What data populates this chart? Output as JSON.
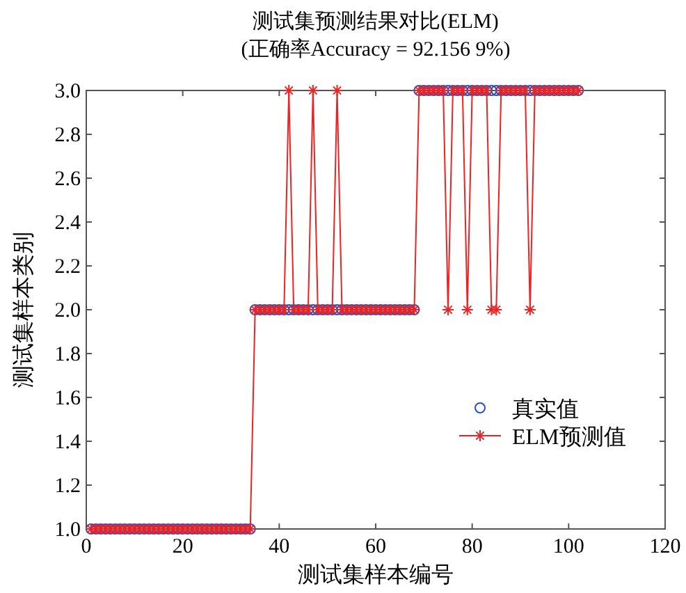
{
  "chart_data": {
    "type": "line",
    "title": "测试集预测结果对比(ELM)",
    "subtitle": "(正确率Accuracy = 92.156 9%)",
    "xlabel": "测试集样本编号",
    "ylabel": "测试集样本类别",
    "x": [
      1,
      2,
      3,
      4,
      5,
      6,
      7,
      8,
      9,
      10,
      11,
      12,
      13,
      14,
      15,
      16,
      17,
      18,
      19,
      20,
      21,
      22,
      23,
      24,
      25,
      26,
      27,
      28,
      29,
      30,
      31,
      32,
      33,
      34,
      35,
      36,
      37,
      38,
      39,
      40,
      41,
      42,
      43,
      44,
      45,
      46,
      47,
      48,
      49,
      50,
      51,
      52,
      53,
      54,
      55,
      56,
      57,
      58,
      59,
      60,
      61,
      62,
      63,
      64,
      65,
      66,
      67,
      68,
      69,
      70,
      71,
      72,
      73,
      74,
      75,
      76,
      77,
      78,
      79,
      80,
      81,
      82,
      83,
      84,
      85,
      86,
      87,
      88,
      89,
      90,
      91,
      92,
      93,
      94,
      95,
      96,
      97,
      98,
      99,
      100,
      101,
      102
    ],
    "series": [
      {
        "name": "真实值",
        "type": "scatter",
        "marker": "circle",
        "color": "#2a4fc0",
        "values": [
          1,
          1,
          1,
          1,
          1,
          1,
          1,
          1,
          1,
          1,
          1,
          1,
          1,
          1,
          1,
          1,
          1,
          1,
          1,
          1,
          1,
          1,
          1,
          1,
          1,
          1,
          1,
          1,
          1,
          1,
          1,
          1,
          1,
          1,
          2,
          2,
          2,
          2,
          2,
          2,
          2,
          2,
          2,
          2,
          2,
          2,
          2,
          2,
          2,
          2,
          2,
          2,
          2,
          2,
          2,
          2,
          2,
          2,
          2,
          2,
          2,
          2,
          2,
          2,
          2,
          2,
          2,
          2,
          3,
          3,
          3,
          3,
          3,
          3,
          3,
          3,
          3,
          3,
          3,
          3,
          3,
          3,
          3,
          3,
          3,
          3,
          3,
          3,
          3,
          3,
          3,
          3,
          3,
          3,
          3,
          3,
          3,
          3,
          3,
          3,
          3,
          3
        ]
      },
      {
        "name": "ELM预测值",
        "marker": "cross",
        "color": "#ee2222",
        "values": [
          1,
          1,
          1,
          1,
          1,
          1,
          1,
          1,
          1,
          1,
          1,
          1,
          1,
          1,
          1,
          1,
          1,
          1,
          1,
          1,
          1,
          1,
          1,
          1,
          1,
          1,
          1,
          1,
          1,
          1,
          1,
          1,
          1,
          1,
          2,
          2,
          2,
          2,
          2,
          2,
          2,
          3,
          2,
          2,
          2,
          2,
          3,
          2,
          2,
          2,
          2,
          3,
          2,
          2,
          2,
          2,
          2,
          2,
          2,
          2,
          2,
          2,
          2,
          2,
          2,
          2,
          2,
          2,
          3,
          3,
          3,
          3,
          3,
          3,
          2,
          3,
          3,
          3,
          2,
          3,
          3,
          3,
          3,
          2,
          2,
          3,
          3,
          3,
          3,
          3,
          3,
          2,
          3,
          3,
          3,
          3,
          3,
          3,
          3,
          3,
          3,
          3
        ]
      }
    ],
    "xlim": [
      0,
      120
    ],
    "xticks": [
      0,
      20,
      40,
      60,
      80,
      100,
      120
    ],
    "ylim": [
      1,
      3
    ],
    "yticks": [
      {
        "value": 1,
        "label": "1.0"
      },
      {
        "value": 1.2,
        "label": "1.2"
      },
      {
        "value": 1.4,
        "label": "1.4"
      },
      {
        "value": 1.6,
        "label": "1.6"
      },
      {
        "value": 1.8,
        "label": "1.8"
      },
      {
        "value": 2,
        "label": "2.0"
      },
      {
        "value": 2.2,
        "label": "2.2"
      },
      {
        "value": 2.4,
        "label": "2.4"
      },
      {
        "value": 2.6,
        "label": "2.6"
      },
      {
        "value": 2.8,
        "label": "2.8"
      },
      {
        "value": 3,
        "label": "3.0"
      }
    ],
    "legend": "right",
    "grid": false
  }
}
